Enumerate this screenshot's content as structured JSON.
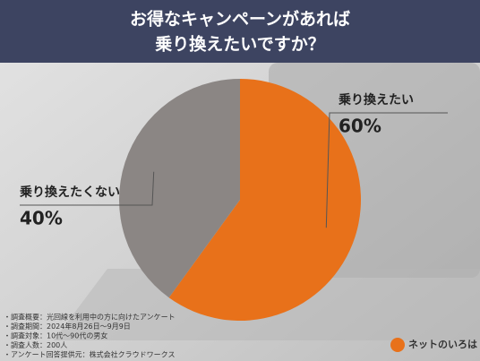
{
  "chart_data": {
    "type": "pie",
    "title": [
      "お得なキャンペーンがあれば",
      "乗り換えたいですか？"
    ],
    "categories": [
      "乗り換えたい",
      "乗り換えたくない"
    ],
    "values": [
      60,
      40
    ],
    "value_labels": [
      "60%",
      "40%"
    ],
    "colors": [
      "#e8711a",
      "#8b8684"
    ],
    "notes": [
      "・調査概要：光回線を利用中の方に向けたアンケート",
      "・調査期間：2024年8月26日〜9月9日",
      "・調査対象：10代〜90代の男女",
      "・調査人数：200人",
      "・アンケート回答提供元：株式会社クラウドワークス"
    ],
    "logo": "ネットのいろは"
  }
}
